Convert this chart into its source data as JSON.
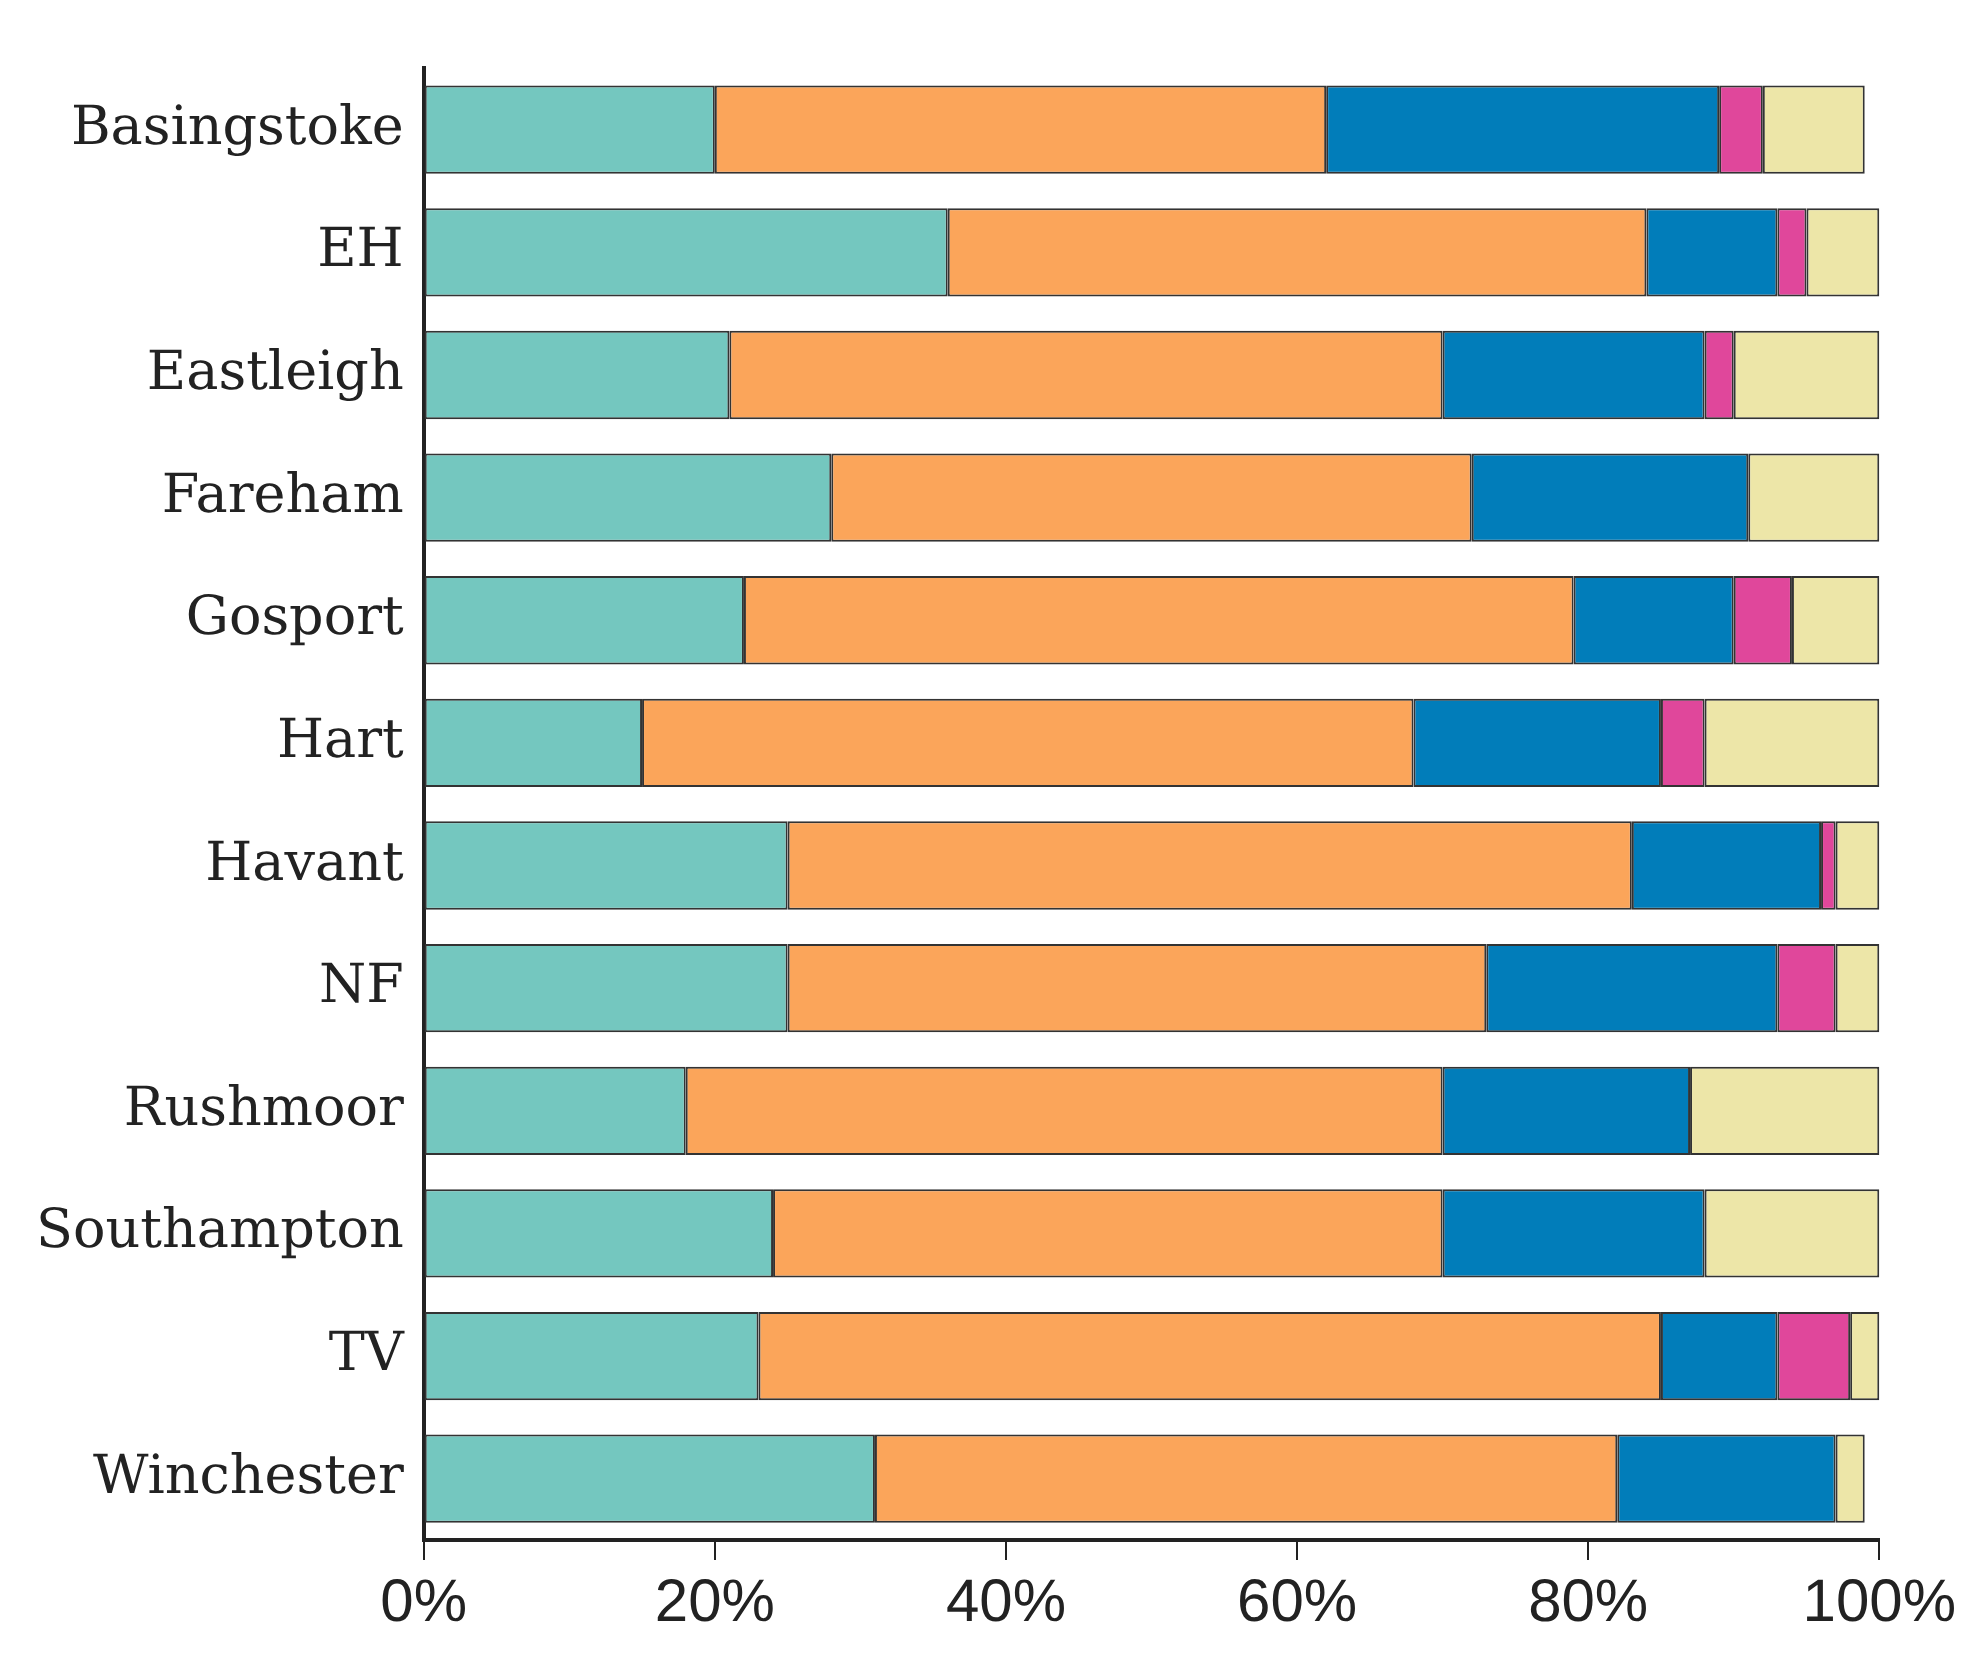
{
  "chart_data": {
    "type": "bar",
    "orientation": "horizontal",
    "stacked": true,
    "categories": [
      "Basingstoke",
      "EH",
      "Eastleigh",
      "Fareham",
      "Gosport",
      "Hart",
      "Havant",
      "NF",
      "Rushmoor",
      "Southampton",
      "TV",
      "Winchester"
    ],
    "series": [
      {
        "color": "#74c7bf",
        "values": [
          20,
          36,
          21,
          28,
          22,
          15,
          25,
          25,
          18,
          24,
          23,
          31
        ]
      },
      {
        "color": "#fba55a",
        "values": [
          42,
          48,
          49,
          44,
          57,
          53,
          58,
          48,
          52,
          46,
          62,
          51
        ]
      },
      {
        "color": "#017dba",
        "values": [
          27,
          9,
          18,
          19,
          11,
          17,
          13,
          20,
          17,
          18,
          8,
          15
        ]
      },
      {
        "color": "#e0479b",
        "values": [
          3,
          2,
          2,
          0,
          4,
          3,
          1,
          4,
          0,
          0,
          5,
          0
        ]
      },
      {
        "color": "#ede6a8",
        "values": [
          7,
          5,
          10,
          9,
          6,
          12,
          3,
          3,
          13,
          12,
          2,
          2
        ]
      }
    ],
    "xlim": [
      0,
      100
    ],
    "xticks": [
      {
        "value": 0,
        "label": "0%"
      },
      {
        "value": 20,
        "label": "20%"
      },
      {
        "value": 40,
        "label": "40%"
      },
      {
        "value": 60,
        "label": "60%"
      },
      {
        "value": 80,
        "label": "80%"
      },
      {
        "value": 100,
        "label": "100%"
      }
    ],
    "grid": false,
    "legend": false
  }
}
